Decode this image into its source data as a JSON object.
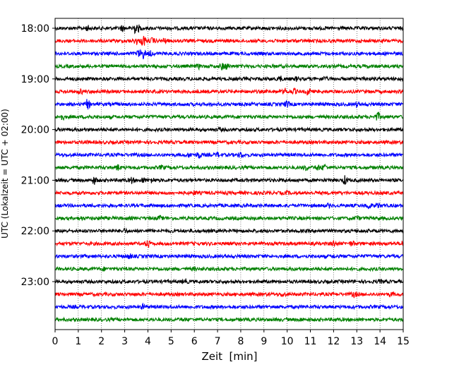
{
  "chart_data": {
    "type": "line",
    "xlabel": "Zeit  [min]",
    "ylabel": "UTC (Lokalzeit = UTC + 02:00)",
    "xlim": [
      0,
      15
    ],
    "xticks": [
      0,
      1,
      2,
      3,
      4,
      5,
      6,
      7,
      8,
      9,
      10,
      11,
      12,
      13,
      14,
      15
    ],
    "grid": "vertical dotted",
    "trace_interval_minutes": 15,
    "trace_colors": [
      "#000000",
      "#ff0000",
      "#0000ff",
      "#008000"
    ],
    "yticks": [
      {
        "label": "18:00",
        "trace": 0
      },
      {
        "label": "19:00",
        "trace": 4
      },
      {
        "label": "20:00",
        "trace": 8
      },
      {
        "label": "21:00",
        "trace": 12
      },
      {
        "label": "22:00",
        "trace": 16
      },
      {
        "label": "23:00",
        "trace": 20
      }
    ],
    "traces": [
      {
        "start": "18:00",
        "color": "#000000",
        "events": [
          [
            1.4,
            0.4
          ],
          [
            2.9,
            0.5
          ],
          [
            3.4,
            1.0
          ],
          [
            3.6,
            0.5
          ]
        ]
      },
      {
        "start": "18:15",
        "color": "#ff0000",
        "events": [
          [
            3.5,
            0.6
          ],
          [
            3.8,
            1.0
          ],
          [
            4.2,
            0.5
          ],
          [
            4.7,
            0.4
          ]
        ]
      },
      {
        "start": "18:30",
        "color": "#0000ff",
        "events": [
          [
            3.6,
            0.6
          ],
          [
            3.8,
            0.9
          ],
          [
            4.1,
            0.4
          ]
        ]
      },
      {
        "start": "18:45",
        "color": "#008000",
        "events": [
          [
            6.2,
            0.3
          ],
          [
            7.2,
            0.6
          ],
          [
            7.4,
            0.5
          ]
        ]
      },
      {
        "start": "19:00",
        "color": "#000000",
        "events": [
          [
            9.7,
            0.4
          ],
          [
            10.4,
            0.3
          ],
          [
            11.6,
            0.3
          ],
          [
            13.3,
            0.3
          ]
        ]
      },
      {
        "start": "19:15",
        "color": "#ff0000",
        "events": [
          [
            1.1,
            0.4
          ],
          [
            9.9,
            0.5
          ],
          [
            10.3,
            0.4
          ],
          [
            10.9,
            0.6
          ]
        ]
      },
      {
        "start": "19:30",
        "color": "#0000ff",
        "events": [
          [
            1.4,
            0.9
          ],
          [
            10.0,
            0.6
          ],
          [
            13.0,
            0.3
          ]
        ]
      },
      {
        "start": "19:45",
        "color": "#008000",
        "events": [
          [
            0.3,
            0.5
          ],
          [
            1.5,
            0.3
          ],
          [
            13.9,
            0.8
          ]
        ]
      },
      {
        "start": "20:00",
        "color": "#000000",
        "events": [
          [
            7.1,
            0.2
          ]
        ]
      },
      {
        "start": "20:15",
        "color": "#ff0000",
        "events": [
          [
            1.3,
            0.2
          ]
        ]
      },
      {
        "start": "20:30",
        "color": "#0000ff",
        "events": [
          [
            5.8,
            0.4
          ],
          [
            6.2,
            0.6
          ],
          [
            7.0,
            0.4
          ],
          [
            8.0,
            0.5
          ]
        ]
      },
      {
        "start": "20:45",
        "color": "#008000",
        "events": [
          [
            2.7,
            0.5
          ],
          [
            4.6,
            0.3
          ],
          [
            10.8,
            0.4
          ],
          [
            11.3,
            0.5
          ],
          [
            11.6,
            0.6
          ]
        ]
      },
      {
        "start": "21:00",
        "color": "#000000",
        "events": [
          [
            1.7,
            0.7
          ],
          [
            3.3,
            0.5
          ],
          [
            3.8,
            0.4
          ],
          [
            4.2,
            0.4
          ],
          [
            12.5,
            0.8
          ]
        ]
      },
      {
        "start": "21:15",
        "color": "#ff0000",
        "events": [
          [
            6.0,
            0.2
          ],
          [
            10.0,
            0.2
          ]
        ]
      },
      {
        "start": "21:30",
        "color": "#0000ff",
        "events": [
          [
            11.8,
            0.3
          ],
          [
            13.5,
            0.6
          ],
          [
            13.9,
            0.4
          ]
        ]
      },
      {
        "start": "21:45",
        "color": "#008000",
        "events": [
          [
            1.1,
            0.3
          ],
          [
            2.0,
            0.3
          ],
          [
            4.5,
            0.3
          ],
          [
            13.0,
            0.3
          ]
        ]
      },
      {
        "start": "22:00",
        "color": "#000000",
        "events": [
          [
            3.0,
            0.3
          ]
        ]
      },
      {
        "start": "22:15",
        "color": "#ff0000",
        "events": [
          [
            4.0,
            0.7
          ],
          [
            12.0,
            0.5
          ],
          [
            12.8,
            0.4
          ],
          [
            15.0,
            0.5
          ]
        ]
      },
      {
        "start": "22:30",
        "color": "#0000ff",
        "events": [
          [
            3.2,
            0.4
          ],
          [
            12.0,
            0.2
          ]
        ]
      },
      {
        "start": "22:45",
        "color": "#008000",
        "events": [
          [
            2.1,
            0.2
          ],
          [
            6.0,
            0.2
          ]
        ]
      },
      {
        "start": "23:00",
        "color": "#000000",
        "events": [
          [
            5.6,
            0.4
          ],
          [
            14.0,
            0.2
          ]
        ]
      },
      {
        "start": "23:15",
        "color": "#ff0000",
        "events": [
          [
            9.8,
            0.3
          ],
          [
            12.9,
            0.5
          ],
          [
            14.5,
            0.3
          ]
        ]
      },
      {
        "start": "23:30",
        "color": "#0000ff",
        "events": [
          [
            3.8,
            0.4
          ]
        ]
      },
      {
        "start": "23:45",
        "color": "#008000",
        "events": [
          [
            5.5,
            0.2
          ],
          [
            10.6,
            0.2
          ]
        ]
      }
    ]
  }
}
